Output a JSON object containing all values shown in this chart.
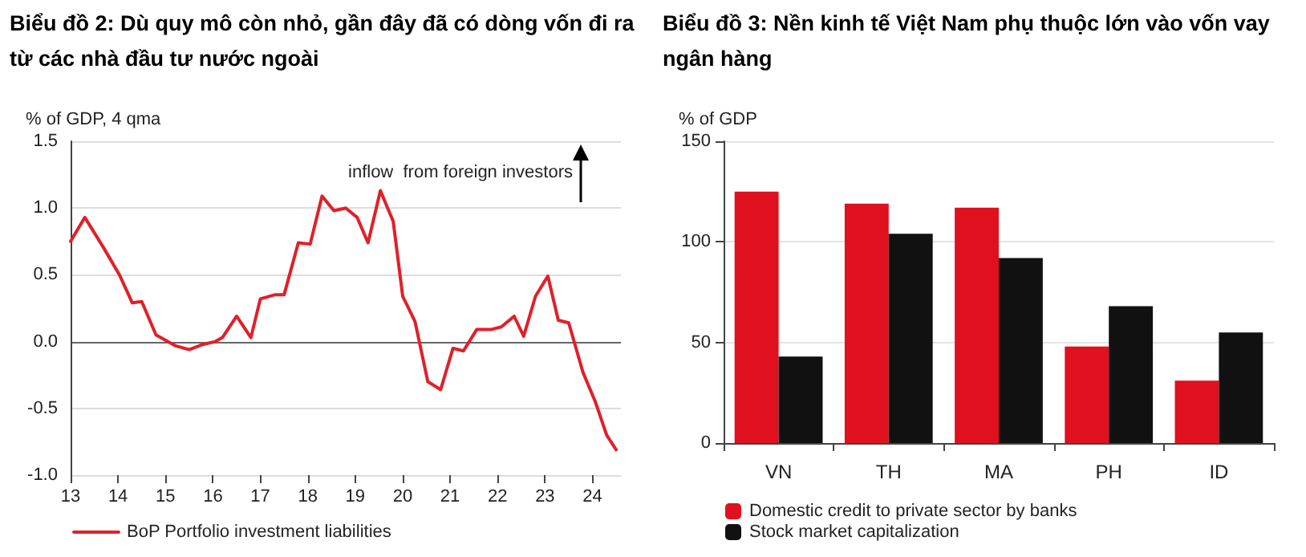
{
  "chart_data": [
    {
      "type": "line",
      "title": "Biểu đồ 2: Dù quy mô còn nhỏ, gần đây đã có dòng vốn đi ra từ các nhà đầu tư nước ngoài",
      "ylabel": "% of GDP, 4 qma",
      "annotations": [
        "inflow  from foreign investors"
      ],
      "series": [
        {
          "name": "BoP Portfolio investment liabilities",
          "color": "#e0202a",
          "x": [
            13.0,
            13.3,
            13.7,
            14.03,
            14.3,
            14.5,
            14.8,
            15.2,
            15.5,
            15.8,
            16.05,
            16.2,
            16.5,
            16.8,
            17.0,
            17.3,
            17.5,
            17.8,
            18.05,
            18.3,
            18.55,
            18.8,
            19.04,
            19.27,
            19.53,
            19.8,
            20.0,
            20.26,
            20.53,
            20.8,
            21.06,
            21.28,
            21.56,
            21.86,
            22.08,
            22.35,
            22.55,
            22.8,
            23.06,
            23.28,
            23.5,
            23.8,
            24.06,
            24.3,
            24.5
          ],
          "values": [
            0.75,
            0.93,
            0.7,
            0.5,
            0.29,
            0.3,
            0.05,
            -0.03,
            -0.06,
            -0.02,
            0.0,
            0.03,
            0.19,
            0.03,
            0.32,
            0.35,
            0.35,
            0.74,
            0.73,
            1.09,
            0.98,
            1.0,
            0.93,
            0.74,
            1.13,
            0.9,
            0.34,
            0.15,
            -0.3,
            -0.36,
            -0.05,
            -0.07,
            0.09,
            0.09,
            0.11,
            0.19,
            0.04,
            0.34,
            0.49,
            0.16,
            0.14,
            -0.23,
            -0.45,
            -0.7,
            -0.81
          ]
        }
      ],
      "xlim": [
        13,
        24.6
      ],
      "xticks": [
        13,
        14,
        15,
        16,
        17,
        18,
        19,
        20,
        21,
        22,
        23,
        24
      ],
      "ylim": [
        -1,
        1.5
      ],
      "yticks": [
        {
          "value": -1,
          "label": "-1.0"
        },
        -0.5,
        {
          "value": 0,
          "label": "0.0"
        },
        0.5,
        {
          "value": 1,
          "label": "1.0"
        },
        1.5
      ],
      "grid": "y",
      "legend": "bottom",
      "marker": "none",
      "line_style": "solid"
    },
    {
      "type": "bar",
      "title": "Biểu đồ 3: Nền kinh tế Việt Nam phụ thuộc lớn vào vốn vay ngân hàng",
      "ylabel": "% of GDP",
      "categories": [
        "VN",
        "TH",
        "MA",
        "PH",
        "ID"
      ],
      "series": [
        {
          "name": "Domestic credit to private sector by banks",
          "color": "#e0101e",
          "values": [
            125,
            119,
            117,
            48,
            31
          ]
        },
        {
          "name": "Stock market capitalization",
          "color": "#111111",
          "values": [
            43,
            104,
            92,
            68,
            55
          ]
        }
      ],
      "ylim": [
        0,
        150
      ],
      "yticks": [
        0,
        50,
        100,
        150
      ],
      "grid": "y",
      "legend": "bottom"
    }
  ]
}
